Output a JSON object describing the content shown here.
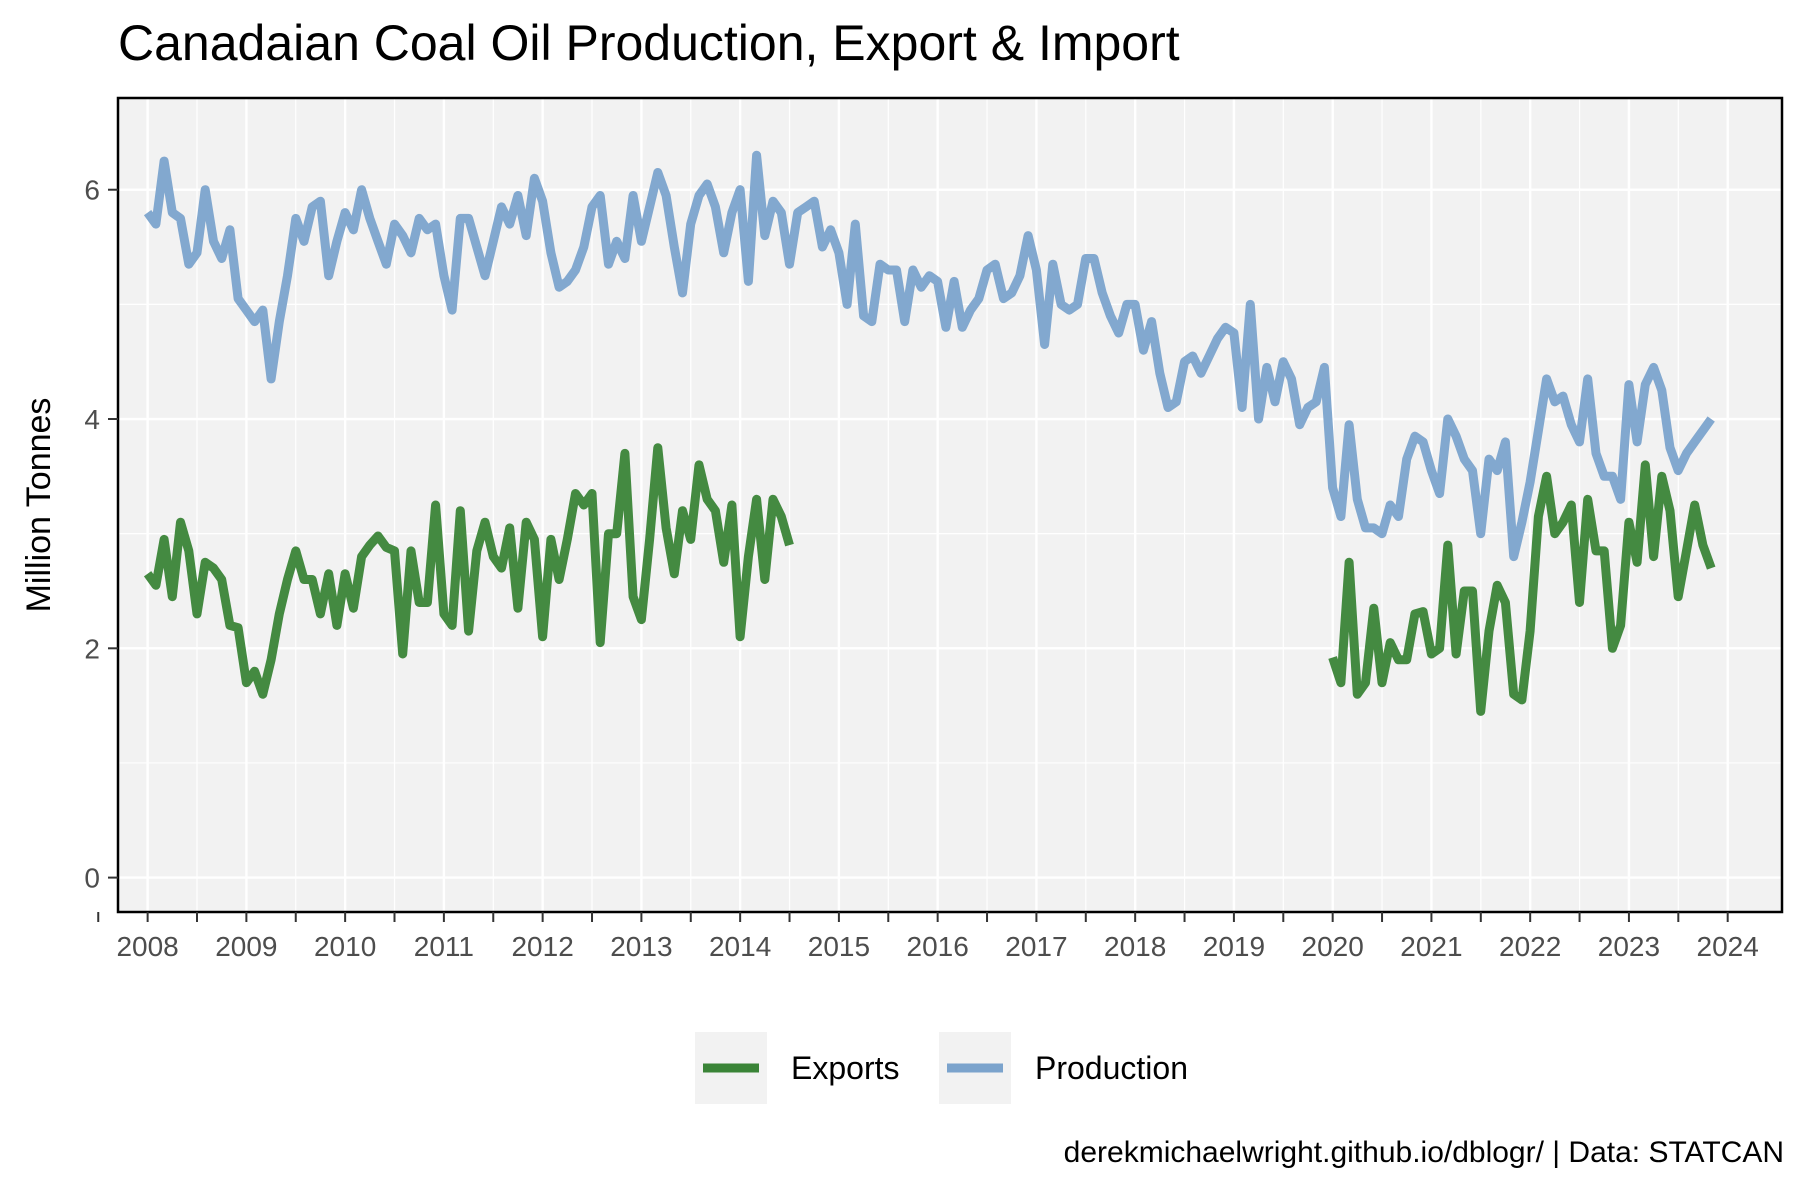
{
  "chart_data": {
    "type": "line",
    "title": "Canadaian Coal Oil Production, Export & Import",
    "xlabel": "",
    "ylabel": "Million Tonnes",
    "caption": "derekmichaelwright.github.io/dblogr/ | Data: STATCAN",
    "xlim": [
      2007.7,
      2024.55
    ],
    "ylim": [
      -0.3,
      6.8
    ],
    "x_ticks": [
      "2008",
      "2009",
      "2010",
      "2011",
      "2012",
      "2013",
      "2014",
      "2015",
      "2016",
      "2017",
      "2018",
      "2019",
      "2020",
      "2021",
      "2022",
      "2023",
      "2024"
    ],
    "y_ticks": [
      "0",
      "2",
      "4",
      "6"
    ],
    "grid": true,
    "legend_position": "bottom",
    "background_color": "#f2f2f2",
    "series": [
      {
        "name": "Exports",
        "color": "#3a8437",
        "x_start": 2008.0,
        "step": 0.08333,
        "values": [
          2.65,
          2.55,
          2.95,
          2.45,
          3.1,
          2.85,
          2.3,
          2.75,
          2.7,
          2.6,
          2.2,
          2.18,
          1.7,
          1.8,
          1.6,
          1.9,
          2.3,
          2.6,
          2.85,
          2.6,
          2.6,
          2.3,
          2.65,
          2.2,
          2.65,
          2.35,
          2.8,
          2.9,
          2.98,
          2.88,
          2.85,
          1.95,
          2.85,
          2.4,
          2.4,
          3.25,
          2.3,
          2.2,
          3.2,
          2.15,
          2.85,
          3.1,
          2.8,
          2.7,
          3.05,
          2.35,
          3.1,
          2.95,
          2.1,
          2.95,
          2.6,
          2.95,
          3.35,
          3.25,
          3.35,
          2.05,
          3.0,
          3.0,
          3.7,
          2.45,
          2.25,
          2.95,
          3.75,
          3.05,
          2.65,
          3.2,
          2.95,
          3.6,
          3.3,
          3.2,
          2.75,
          3.25,
          2.1,
          2.8,
          3.3,
          2.6,
          3.3,
          3.15,
          2.9,
          null,
          null,
          null,
          null,
          null,
          null,
          null,
          null,
          null,
          null,
          null,
          null,
          null,
          null,
          null,
          null,
          null,
          null,
          null,
          null,
          null,
          null,
          null,
          null,
          null,
          null,
          null,
          null,
          null,
          null,
          null,
          null,
          null,
          null,
          null,
          null,
          null,
          null,
          null,
          null,
          null,
          null,
          null,
          null,
          null,
          null,
          null,
          null,
          null,
          null,
          null,
          null,
          null,
          null,
          null,
          null,
          null,
          null,
          null,
          null,
          null,
          null,
          null,
          null,
          null,
          1.92,
          1.7,
          2.75,
          1.6,
          1.7,
          2.35,
          1.7,
          2.05,
          1.9,
          1.9,
          2.3,
          2.32,
          1.95,
          2.0,
          2.9,
          1.95,
          2.5,
          2.5,
          1.45,
          2.15,
          2.55,
          2.4,
          1.6,
          1.55,
          2.15,
          3.15,
          3.5,
          3.0,
          3.1,
          3.25,
          2.4,
          3.3,
          2.85,
          2.85,
          2.0,
          2.2,
          3.1,
          2.75,
          3.6,
          2.8,
          3.5,
          3.2,
          2.45,
          2.85,
          3.25,
          2.9,
          2.7
        ]
      },
      {
        "name": "Production",
        "color": "#7ba3cc",
        "x_start": 2008.0,
        "step": 0.08333,
        "values": [
          5.8,
          5.7,
          6.25,
          5.8,
          5.75,
          5.35,
          5.45,
          6.0,
          5.55,
          5.4,
          5.65,
          5.05,
          4.95,
          4.85,
          4.95,
          4.35,
          4.85,
          5.25,
          5.75,
          5.55,
          5.85,
          5.9,
          5.25,
          5.55,
          5.8,
          5.65,
          6.0,
          5.75,
          5.55,
          5.35,
          5.7,
          5.6,
          5.45,
          5.75,
          5.65,
          5.7,
          5.25,
          4.95,
          5.75,
          5.75,
          5.5,
          5.25,
          5.55,
          5.85,
          5.7,
          5.95,
          5.6,
          6.1,
          5.9,
          5.45,
          5.15,
          5.2,
          5.3,
          5.5,
          5.85,
          5.95,
          5.35,
          5.55,
          5.4,
          5.95,
          5.55,
          5.85,
          6.15,
          5.95,
          5.5,
          5.1,
          5.7,
          5.95,
          6.05,
          5.85,
          5.45,
          5.8,
          6.0,
          5.2,
          6.3,
          5.6,
          5.9,
          5.8,
          5.35,
          5.8,
          5.85,
          5.9,
          5.5,
          5.65,
          5.45,
          5.0,
          5.7,
          4.9,
          4.85,
          5.35,
          5.3,
          5.3,
          4.85,
          5.3,
          5.15,
          5.25,
          5.2,
          4.8,
          5.2,
          4.8,
          4.95,
          5.05,
          5.3,
          5.35,
          5.05,
          5.1,
          5.25,
          5.6,
          5.3,
          4.65,
          5.35,
          5.0,
          4.95,
          5.0,
          5.4,
          5.4,
          5.1,
          4.9,
          4.75,
          5.0,
          5.0,
          4.6,
          4.85,
          4.4,
          4.1,
          4.15,
          4.5,
          4.55,
          4.4,
          4.55,
          4.7,
          4.8,
          4.75,
          4.1,
          5.0,
          4.0,
          4.45,
          4.15,
          4.5,
          4.35,
          3.95,
          4.1,
          4.15,
          4.45,
          3.4,
          3.15,
          3.95,
          3.3,
          3.05,
          3.05,
          3.0,
          3.25,
          3.15,
          3.65,
          3.85,
          3.8,
          3.55,
          3.35,
          4.0,
          3.85,
          3.65,
          3.55,
          3.0,
          3.65,
          3.55,
          3.8,
          2.8,
          3.1,
          3.45,
          3.9,
          4.35,
          4.15,
          4.2,
          3.95,
          3.8,
          4.35,
          3.7,
          3.5,
          3.5,
          3.3,
          4.3,
          3.8,
          4.3,
          4.45,
          4.25,
          3.75,
          3.55,
          3.7,
          3.8,
          3.9,
          4.0
        ]
      }
    ]
  },
  "legend": {
    "items": [
      {
        "label": "Exports",
        "color": "#3a8437"
      },
      {
        "label": "Production",
        "color": "#7ba3cc"
      }
    ]
  }
}
